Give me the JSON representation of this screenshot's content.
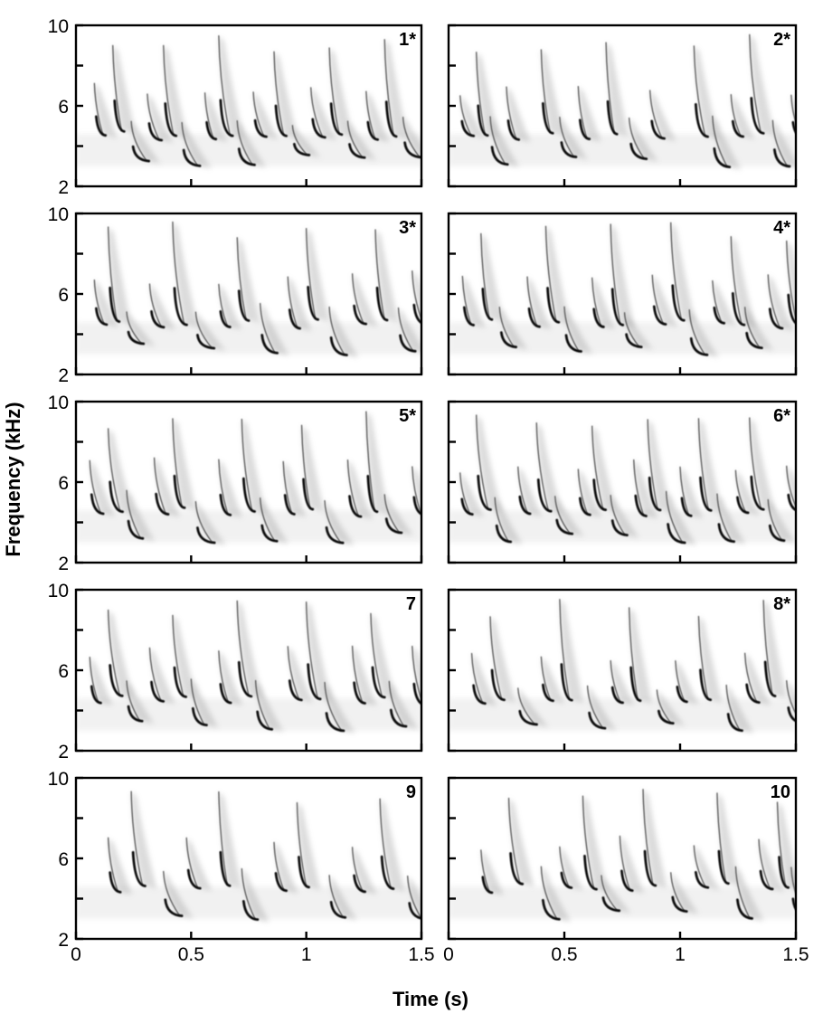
{
  "figure": {
    "xlabel": "Time (s)",
    "ylabel": "Frequency (kHz)"
  },
  "chart_data": [
    {
      "type": "spectrogram",
      "label": "1*",
      "xlim": [
        0,
        1.5
      ],
      "ylim": [
        2,
        10
      ],
      "x_ticks": [
        0,
        0.5,
        1,
        1.5
      ],
      "y_ticks": [
        2,
        6,
        10
      ],
      "y_minor_ticks": [
        4,
        8
      ],
      "note_times": [
        0.08,
        0.16,
        0.24,
        0.31,
        0.38,
        0.46,
        0.56,
        0.62,
        0.7,
        0.77,
        0.86,
        0.94,
        1.02,
        1.1,
        1.18,
        1.26,
        1.34,
        1.42
      ]
    },
    {
      "type": "spectrogram",
      "label": "2*",
      "xlim": [
        0,
        1.5
      ],
      "ylim": [
        2,
        10
      ],
      "x_ticks": [
        0,
        0.5,
        1,
        1.5
      ],
      "y_ticks": [
        2,
        6,
        10
      ],
      "y_minor_ticks": [
        4,
        8
      ],
      "note_times": [
        0.05,
        0.12,
        0.18,
        0.25,
        0.4,
        0.48,
        0.56,
        0.68,
        0.78,
        0.87,
        1.06,
        1.14,
        1.22,
        1.3,
        1.4,
        1.48
      ]
    },
    {
      "type": "spectrogram",
      "label": "3*",
      "xlim": [
        0,
        1.5
      ],
      "ylim": [
        2,
        10
      ],
      "x_ticks": [
        0,
        0.5,
        1,
        1.5
      ],
      "y_ticks": [
        2,
        6,
        10
      ],
      "y_minor_ticks": [
        4,
        8
      ],
      "note_times": [
        0.08,
        0.14,
        0.22,
        0.32,
        0.42,
        0.52,
        0.62,
        0.7,
        0.8,
        0.92,
        1.0,
        1.1,
        1.2,
        1.3,
        1.4,
        1.46
      ]
    },
    {
      "type": "spectrogram",
      "label": "4*",
      "xlim": [
        0,
        1.5
      ],
      "ylim": [
        2,
        10
      ],
      "x_ticks": [
        0,
        0.5,
        1,
        1.5
      ],
      "y_ticks": [
        2,
        6,
        10
      ],
      "y_minor_ticks": [
        4,
        8
      ],
      "note_times": [
        0.06,
        0.14,
        0.22,
        0.34,
        0.42,
        0.5,
        0.62,
        0.7,
        0.76,
        0.88,
        0.96,
        1.04,
        1.14,
        1.22,
        1.28,
        1.38,
        1.46
      ]
    },
    {
      "type": "spectrogram",
      "label": "5*",
      "xlim": [
        0,
        1.5
      ],
      "ylim": [
        2,
        10
      ],
      "x_ticks": [
        0,
        0.5,
        1,
        1.5
      ],
      "y_ticks": [
        2,
        6,
        10
      ],
      "y_minor_ticks": [
        4,
        8
      ],
      "note_times": [
        0.06,
        0.14,
        0.22,
        0.34,
        0.42,
        0.52,
        0.62,
        0.72,
        0.8,
        0.9,
        0.98,
        1.08,
        1.18,
        1.26,
        1.34,
        1.46
      ]
    },
    {
      "type": "spectrogram",
      "label": "6*",
      "xlim": [
        0,
        1.5
      ],
      "ylim": [
        2,
        10
      ],
      "x_ticks": [
        0,
        0.5,
        1,
        1.5
      ],
      "y_ticks": [
        2,
        6,
        10
      ],
      "y_minor_ticks": [
        4,
        8
      ],
      "note_times": [
        0.05,
        0.12,
        0.2,
        0.3,
        0.38,
        0.46,
        0.56,
        0.62,
        0.7,
        0.8,
        0.86,
        0.94,
        1.0,
        1.08,
        1.16,
        1.24,
        1.3,
        1.38,
        1.46
      ]
    },
    {
      "type": "spectrogram",
      "label": "7",
      "xlim": [
        0,
        1.5
      ],
      "ylim": [
        2,
        10
      ],
      "x_ticks": [
        0,
        0.5,
        1,
        1.5
      ],
      "y_ticks": [
        2,
        6,
        10
      ],
      "y_minor_ticks": [
        4,
        8
      ],
      "note_times": [
        0.06,
        0.14,
        0.22,
        0.32,
        0.42,
        0.5,
        0.62,
        0.7,
        0.78,
        0.92,
        1.0,
        1.08,
        1.2,
        1.28,
        1.36,
        1.46
      ]
    },
    {
      "type": "spectrogram",
      "label": "8*",
      "xlim": [
        0,
        1.5
      ],
      "ylim": [
        2,
        10
      ],
      "x_ticks": [
        0,
        0.5,
        1,
        1.5
      ],
      "y_ticks": [
        2,
        6,
        10
      ],
      "y_minor_ticks": [
        4,
        8
      ],
      "note_times": [
        0.1,
        0.18,
        0.3,
        0.4,
        0.48,
        0.6,
        0.7,
        0.78,
        0.9,
        0.98,
        1.08,
        1.2,
        1.28,
        1.36,
        1.46
      ]
    },
    {
      "type": "spectrogram",
      "label": "9",
      "xlim": [
        0,
        1.5
      ],
      "ylim": [
        2,
        10
      ],
      "x_ticks": [
        0,
        0.5,
        1,
        1.5
      ],
      "y_ticks": [
        2,
        6,
        10
      ],
      "y_minor_ticks": [
        4,
        8
      ],
      "note_times": [
        0.14,
        0.24,
        0.38,
        0.48,
        0.62,
        0.72,
        0.86,
        0.96,
        1.1,
        1.2,
        1.32,
        1.44
      ]
    },
    {
      "type": "spectrogram",
      "label": "10",
      "xlim": [
        0,
        1.5
      ],
      "ylim": [
        2,
        10
      ],
      "x_ticks": [
        0,
        0.5,
        1,
        1.5
      ],
      "y_ticks": [
        2,
        6,
        10
      ],
      "y_minor_ticks": [
        4,
        8
      ],
      "note_times": [
        0.14,
        0.26,
        0.4,
        0.48,
        0.58,
        0.66,
        0.74,
        0.84,
        0.96,
        1.06,
        1.16,
        1.24,
        1.34,
        1.42,
        1.48
      ]
    }
  ]
}
